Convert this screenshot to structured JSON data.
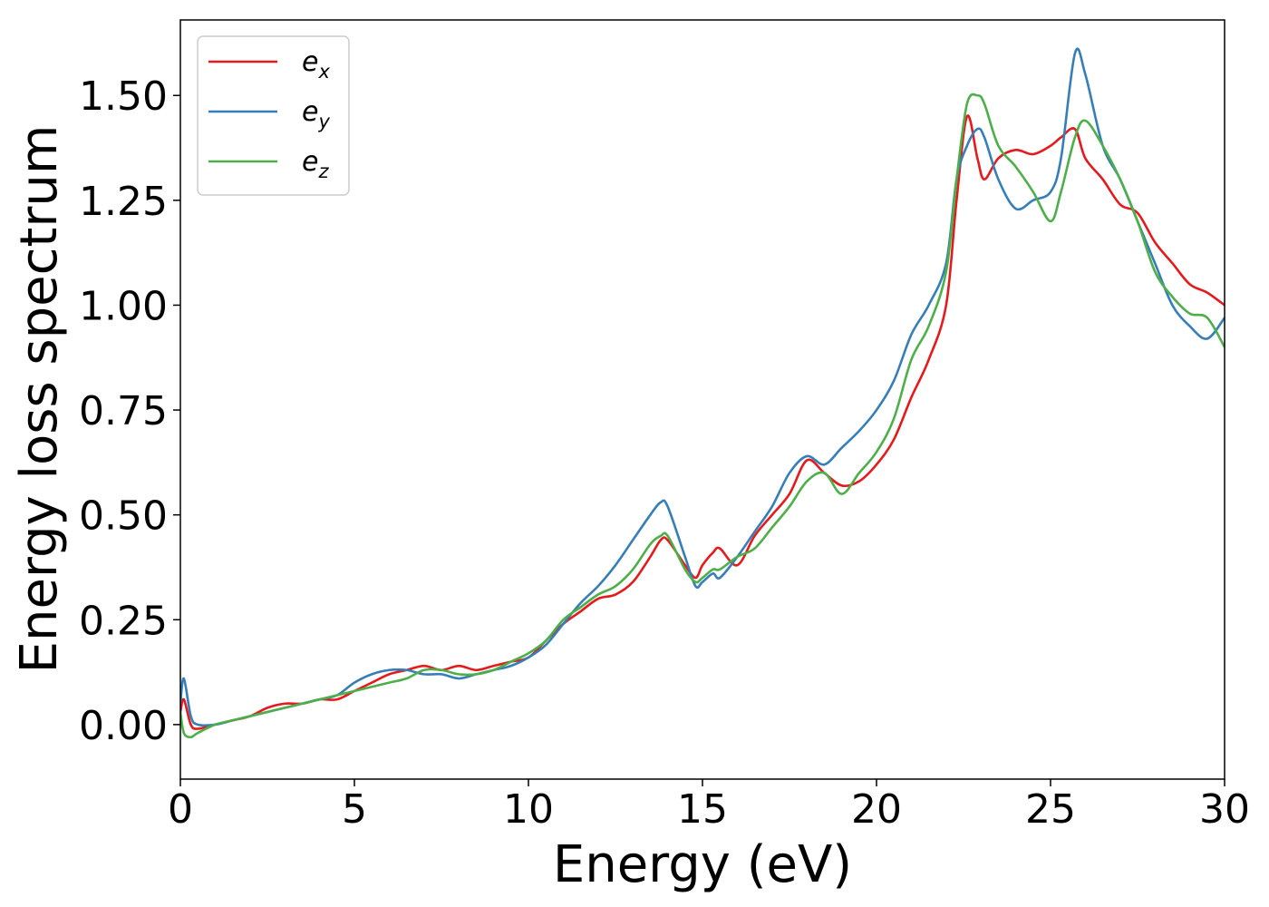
{
  "chart_data": {
    "type": "line",
    "title": "",
    "xlabel": "Energy (eV)",
    "ylabel": "Energy loss spectrum",
    "xlim": [
      0,
      30
    ],
    "ylim": [
      -0.13,
      1.68
    ],
    "xticks": [
      0,
      5,
      10,
      15,
      20,
      25,
      30
    ],
    "xtick_labels": [
      "0",
      "5",
      "10",
      "15",
      "20",
      "25",
      "30"
    ],
    "yticks": [
      0.0,
      0.25,
      0.5,
      0.75,
      1.0,
      1.25,
      1.5
    ],
    "ytick_labels": [
      "0.00",
      "0.25",
      "0.50",
      "0.75",
      "1.00",
      "1.25",
      "1.50"
    ],
    "grid": false,
    "legend_position": "top-left",
    "x": [
      0,
      0.1,
      0.3,
      0.5,
      1,
      1.5,
      2,
      2.5,
      3,
      3.5,
      4,
      4.5,
      5,
      5.5,
      6,
      6.5,
      7,
      7.5,
      8,
      8.5,
      9,
      9.5,
      10,
      10.5,
      11,
      11.5,
      12,
      12.5,
      13,
      13.5,
      13.8,
      14,
      14.5,
      14.8,
      15,
      15.3,
      15.5,
      16,
      16.5,
      17,
      17.5,
      18,
      18.5,
      19,
      19.5,
      20,
      20.5,
      21,
      21.5,
      22,
      22.3,
      22.6,
      22.9,
      23.1,
      23.5,
      24,
      24.5,
      25,
      25.3,
      25.7,
      26,
      26.5,
      27,
      27.5,
      28,
      28.5,
      29,
      29.5,
      30
    ],
    "series": [
      {
        "name": "e",
        "subscript": "x",
        "color": "#e41a1c",
        "values": [
          0.03,
          0.06,
          0.0,
          -0.01,
          0.0,
          0.01,
          0.02,
          0.04,
          0.05,
          0.05,
          0.06,
          0.06,
          0.08,
          0.1,
          0.12,
          0.13,
          0.14,
          0.13,
          0.14,
          0.13,
          0.14,
          0.15,
          0.16,
          0.2,
          0.24,
          0.27,
          0.3,
          0.31,
          0.34,
          0.4,
          0.44,
          0.44,
          0.38,
          0.35,
          0.38,
          0.41,
          0.42,
          0.38,
          0.45,
          0.5,
          0.55,
          0.63,
          0.6,
          0.57,
          0.58,
          0.62,
          0.68,
          0.78,
          0.87,
          1.0,
          1.25,
          1.45,
          1.35,
          1.3,
          1.35,
          1.37,
          1.36,
          1.38,
          1.4,
          1.42,
          1.35,
          1.3,
          1.24,
          1.22,
          1.15,
          1.1,
          1.05,
          1.03,
          1.0
        ]
      },
      {
        "name": "e",
        "subscript": "y",
        "color": "#377eb8",
        "values": [
          0.05,
          0.11,
          0.02,
          0.0,
          0.0,
          0.01,
          0.02,
          0.03,
          0.04,
          0.05,
          0.06,
          0.07,
          0.1,
          0.12,
          0.13,
          0.13,
          0.12,
          0.12,
          0.11,
          0.12,
          0.13,
          0.14,
          0.16,
          0.19,
          0.24,
          0.29,
          0.33,
          0.38,
          0.44,
          0.5,
          0.53,
          0.52,
          0.4,
          0.33,
          0.34,
          0.36,
          0.35,
          0.4,
          0.46,
          0.52,
          0.6,
          0.64,
          0.62,
          0.66,
          0.7,
          0.75,
          0.82,
          0.93,
          1.0,
          1.1,
          1.3,
          1.38,
          1.42,
          1.4,
          1.3,
          1.23,
          1.25,
          1.27,
          1.35,
          1.6,
          1.55,
          1.38,
          1.3,
          1.2,
          1.1,
          1.0,
          0.95,
          0.92,
          0.97
        ]
      },
      {
        "name": "e",
        "subscript": "z",
        "color": "#4daf4a",
        "values": [
          0.03,
          -0.02,
          -0.03,
          -0.02,
          0.0,
          0.01,
          0.02,
          0.03,
          0.04,
          0.05,
          0.06,
          0.07,
          0.08,
          0.09,
          0.1,
          0.11,
          0.13,
          0.13,
          0.12,
          0.12,
          0.13,
          0.15,
          0.17,
          0.2,
          0.25,
          0.28,
          0.31,
          0.33,
          0.37,
          0.43,
          0.45,
          0.45,
          0.37,
          0.34,
          0.35,
          0.37,
          0.37,
          0.4,
          0.42,
          0.47,
          0.52,
          0.58,
          0.6,
          0.55,
          0.6,
          0.65,
          0.73,
          0.87,
          0.95,
          1.08,
          1.3,
          1.48,
          1.5,
          1.48,
          1.38,
          1.33,
          1.27,
          1.2,
          1.27,
          1.4,
          1.44,
          1.38,
          1.3,
          1.2,
          1.08,
          1.02,
          0.98,
          0.97,
          0.9
        ]
      }
    ]
  }
}
